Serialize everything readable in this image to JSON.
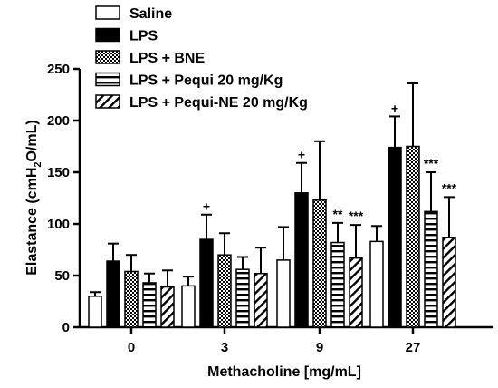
{
  "chart_data": {
    "type": "bar",
    "title": "",
    "xlabel": "Methacholine [mg/mL]",
    "ylabel_main": "Elastance  (cmH",
    "ylabel_sub": "2",
    "ylabel_tail": "O/mL)",
    "categories": [
      "0",
      "3",
      "9",
      "27"
    ],
    "ylim": [
      0,
      250
    ],
    "yticks": [
      "0",
      "50",
      "100",
      "150",
      "200",
      "250"
    ],
    "grid": false,
    "legend_position": "top-left",
    "series": [
      {
        "name": "Saline",
        "pattern": "white",
        "values": [
          30,
          40,
          65,
          83
        ],
        "errors": [
          4,
          9,
          32,
          15
        ],
        "annotations": [
          "",
          "",
          "",
          ""
        ]
      },
      {
        "name": "LPS",
        "pattern": "black",
        "values": [
          64,
          85,
          130,
          174
        ],
        "errors": [
          17,
          24,
          29,
          30
        ],
        "annotations": [
          "",
          "+",
          "+",
          "+"
        ]
      },
      {
        "name": "LPS + BNE",
        "pattern": "checker",
        "values": [
          54,
          70,
          123,
          175
        ],
        "errors": [
          16,
          21,
          57,
          61
        ],
        "annotations": [
          "",
          "",
          "",
          ""
        ]
      },
      {
        "name": "LPS + Pequi 20 mg/Kg",
        "pattern": "horizontal",
        "values": [
          43,
          56,
          82,
          112
        ],
        "errors": [
          9,
          12,
          19,
          38
        ],
        "annotations": [
          "",
          "",
          "**",
          "***"
        ]
      },
      {
        "name": "LPS + Pequi-NE 20 mg/Kg",
        "pattern": "diagonal",
        "values": [
          39,
          52,
          67,
          87
        ],
        "errors": [
          16,
          25,
          32,
          39
        ],
        "annotations": [
          "",
          "",
          "***",
          "***"
        ]
      }
    ]
  }
}
